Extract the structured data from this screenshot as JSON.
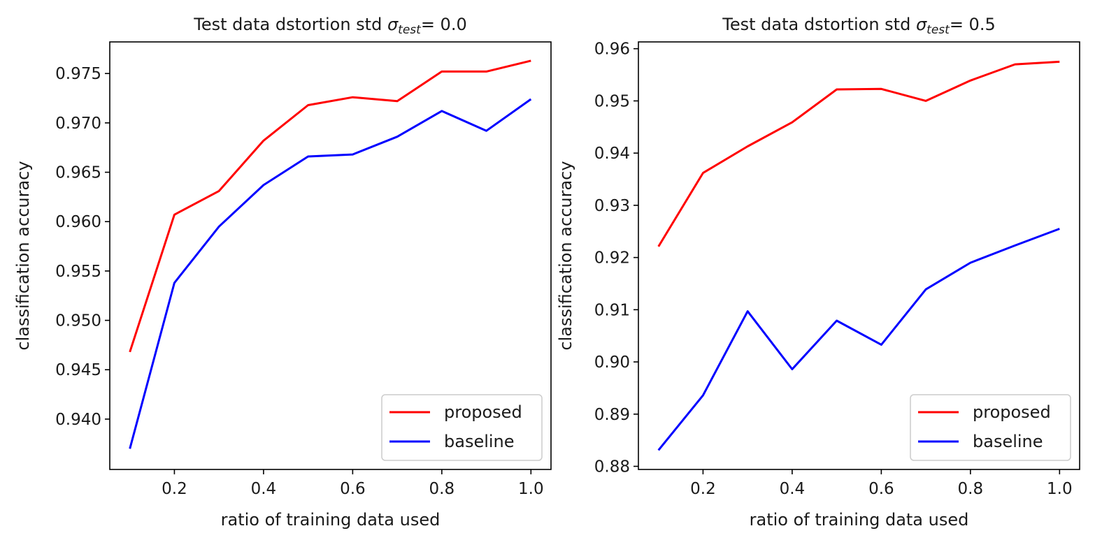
{
  "chart_data": [
    {
      "type": "line",
      "title": {
        "prefix": "Test data dstortion std ",
        "symbol": "σ",
        "subscript": "test",
        "suffix": "= 0.0"
      },
      "xlabel": "ratio of training data used",
      "ylabel": "classification accuracy",
      "xlim": [
        0.055,
        1.045
      ],
      "ylim": [
        0.9349,
        0.9782
      ],
      "xticks": [
        0.2,
        0.4,
        0.6,
        0.8,
        1.0
      ],
      "xtick_labels": [
        "0.2",
        "0.4",
        "0.6",
        "0.8",
        "1.0"
      ],
      "yticks": [
        0.94,
        0.945,
        0.95,
        0.955,
        0.96,
        0.965,
        0.97,
        0.975
      ],
      "ytick_labels": [
        "0.940",
        "0.945",
        "0.950",
        "0.955",
        "0.960",
        "0.965",
        "0.970",
        "0.975"
      ],
      "x": [
        0.1,
        0.2,
        0.3,
        0.4,
        0.5,
        0.6,
        0.7,
        0.8,
        0.9,
        1.0
      ],
      "series": [
        {
          "name": "proposed",
          "color": "#ff0000",
          "values": [
            0.9468,
            0.9607,
            0.9631,
            0.9682,
            0.9718,
            0.9726,
            0.9722,
            0.9752,
            0.9752,
            0.9763
          ]
        },
        {
          "name": "baseline",
          "color": "#0000ff",
          "values": [
            0.937,
            0.9538,
            0.9595,
            0.9637,
            0.9666,
            0.9668,
            0.9686,
            0.9712,
            0.9692,
            0.9724
          ]
        }
      ],
      "legend_position": "lower-right",
      "grid": false
    },
    {
      "type": "line",
      "title": {
        "prefix": "Test data dstortion std ",
        "symbol": "σ",
        "subscript": "test",
        "suffix": "= 0.5"
      },
      "xlabel": "ratio of training data used",
      "ylabel": "classification accuracy",
      "xlim": [
        0.055,
        1.045
      ],
      "ylim": [
        0.8794,
        0.9613
      ],
      "xticks": [
        0.2,
        0.4,
        0.6,
        0.8,
        1.0
      ],
      "xtick_labels": [
        "0.2",
        "0.4",
        "0.6",
        "0.8",
        "1.0"
      ],
      "yticks": [
        0.88,
        0.89,
        0.9,
        0.91,
        0.92,
        0.93,
        0.94,
        0.95,
        0.96
      ],
      "ytick_labels": [
        "0.88",
        "0.89",
        "0.90",
        "0.91",
        "0.92",
        "0.93",
        "0.94",
        "0.95",
        "0.96"
      ],
      "x": [
        0.1,
        0.2,
        0.3,
        0.4,
        0.5,
        0.6,
        0.7,
        0.8,
        0.9,
        1.0
      ],
      "series": [
        {
          "name": "proposed",
          "color": "#ff0000",
          "values": [
            0.9221,
            0.9362,
            0.9413,
            0.9459,
            0.9522,
            0.9523,
            0.95,
            0.9539,
            0.957,
            0.9575
          ]
        },
        {
          "name": "baseline",
          "color": "#0000ff",
          "values": [
            0.8831,
            0.8936,
            0.9097,
            0.8986,
            0.9079,
            0.9033,
            0.9139,
            0.919,
            0.9223,
            0.9255
          ]
        }
      ],
      "legend_position": "lower-right",
      "grid": false
    }
  ]
}
